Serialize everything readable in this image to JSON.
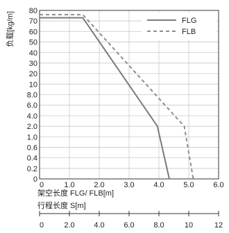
{
  "chart_data": {
    "type": "line",
    "ylabel": "负载[kg/m]",
    "xlabel": "架空长度 FLG/ FLB[m]",
    "x2label": "行程长度 S[m]",
    "y_tick_labels": [
      "80",
      "70",
      "60",
      "50",
      "40",
      "30",
      "20",
      "10",
      "8.0",
      "6.0",
      "4.0",
      "2.0",
      "1.0",
      "0.6",
      "0.4",
      "0.2",
      "0"
    ],
    "x_ticks": [
      0,
      1.0,
      2.0,
      3.0,
      4.0,
      5.0,
      6.0
    ],
    "x_tick_labels": [
      "0",
      "1.0",
      "2.0",
      "3.0",
      "4.0",
      "5.0",
      "6.0"
    ],
    "x2_ticks": [
      0,
      2.0,
      4.0,
      6.0,
      8.0,
      10,
      12
    ],
    "x2_tick_labels": [
      "0",
      "2.0",
      "4.0",
      "6.0",
      "8.0",
      "10",
      "12"
    ],
    "xlim": [
      0,
      6.0
    ],
    "x2lim": [
      0,
      12
    ],
    "grid": true,
    "legend_position": "top-right",
    "series": [
      {
        "name": "FLG",
        "color": "#7a7a7a",
        "style": "solid",
        "x": [
          0,
          1.45,
          3.95,
          4.35
        ],
        "y": [
          "73",
          "73",
          "2.0",
          "0"
        ]
      },
      {
        "name": "FLB",
        "color": "#8c8c8c",
        "style": "dashed",
        "x": [
          0,
          1.45,
          4.85,
          5.15
        ],
        "y": [
          "76",
          "76",
          "2.0",
          "0"
        ]
      }
    ]
  }
}
